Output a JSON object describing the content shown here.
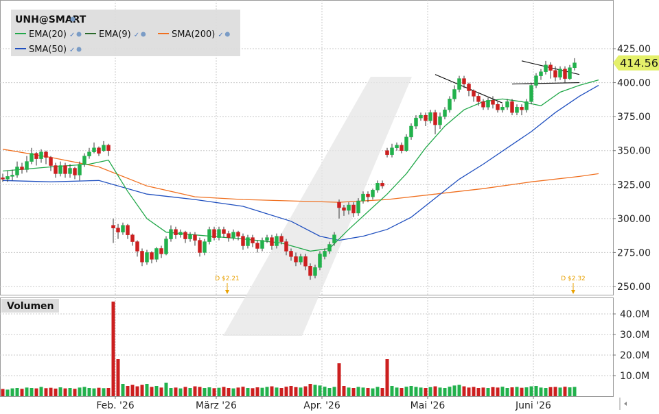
{
  "chart_data": {
    "type": "candlestick",
    "symbol": "UNH@SMART",
    "last_price": "414.56",
    "legend": [
      {
        "name": "EMA(20)",
        "color": "#22a84a"
      },
      {
        "name": "EMA(9)",
        "color": "#2a6a2a"
      },
      {
        "name": "SMA(200)",
        "color": "#f07020"
      },
      {
        "name": "SMA(50)",
        "color": "#1f4fbf"
      }
    ],
    "volume_label": "Volumen",
    "x_ticks": [
      {
        "label": "Feb. '26",
        "index": 24
      },
      {
        "label": "März '26",
        "index": 45
      },
      {
        "label": "Apr. '26",
        "index": 67
      },
      {
        "label": "Mai '26",
        "index": 89
      },
      {
        "label": "Juni '26",
        "index": 111
      }
    ],
    "price_axis": {
      "ylim": [
        242,
        428
      ],
      "ticks": [
        "425.00",
        "400.00",
        "375.00",
        "350.00",
        "325.00",
        "300.00",
        "275.00",
        "250.00"
      ]
    },
    "volume_axis": {
      "ylim": [
        0,
        48
      ],
      "ticks": [
        "40.0M",
        "30.0M",
        "20.0M",
        "10.0M"
      ],
      "unit": "M"
    },
    "dividends": [
      {
        "label": "D $2.21",
        "index": 47
      },
      {
        "label": "D $2.32",
        "index": 119
      }
    ],
    "candles": [
      [
        330,
        329,
        333,
        327
      ],
      [
        329,
        331,
        335,
        327
      ],
      [
        331,
        332,
        336,
        328
      ],
      [
        332,
        338,
        342,
        330
      ],
      [
        338,
        336,
        341,
        333
      ],
      [
        336,
        342,
        346,
        334
      ],
      [
        342,
        348,
        352,
        340
      ],
      [
        348,
        344,
        349,
        339
      ],
      [
        344,
        349,
        351,
        341
      ],
      [
        349,
        345,
        350,
        340
      ],
      [
        345,
        339,
        346,
        335
      ],
      [
        339,
        333,
        341,
        330
      ],
      [
        333,
        339,
        342,
        331
      ],
      [
        339,
        333,
        341,
        330
      ],
      [
        333,
        337,
        340,
        330
      ],
      [
        337,
        332,
        338,
        329
      ],
      [
        332,
        340,
        342,
        328
      ],
      [
        340,
        346,
        348,
        338
      ],
      [
        346,
        349,
        352,
        344
      ],
      [
        349,
        352,
        356,
        348
      ],
      [
        352,
        348,
        353,
        346
      ],
      [
        350,
        354,
        357,
        349
      ],
      [
        354,
        350,
        355,
        346
      ],
      [
        295,
        293,
        300,
        282
      ],
      [
        293,
        290,
        296,
        285
      ],
      [
        290,
        295,
        297,
        288
      ],
      [
        295,
        288,
        296,
        285
      ],
      [
        288,
        283,
        289,
        280
      ],
      [
        283,
        276,
        284,
        272
      ],
      [
        276,
        268,
        278,
        265
      ],
      [
        268,
        275,
        277,
        266
      ],
      [
        275,
        270,
        276,
        267
      ],
      [
        270,
        278,
        279,
        268
      ],
      [
        278,
        274,
        280,
        271
      ],
      [
        274,
        285,
        287,
        273
      ],
      [
        285,
        292,
        295,
        283
      ],
      [
        292,
        288,
        294,
        285
      ],
      [
        288,
        290,
        292,
        286
      ],
      [
        290,
        285,
        291,
        282
      ],
      [
        285,
        288,
        290,
        283
      ],
      [
        288,
        284,
        290,
        280
      ],
      [
        284,
        275,
        286,
        272
      ],
      [
        275,
        283,
        285,
        273
      ],
      [
        283,
        292,
        294,
        281
      ],
      [
        292,
        286,
        294,
        284
      ],
      [
        286,
        292,
        294,
        284
      ],
      [
        292,
        289,
        294,
        286
      ],
      [
        289,
        286,
        291,
        283
      ],
      [
        286,
        290,
        292,
        284
      ],
      [
        290,
        287,
        291,
        284
      ],
      [
        287,
        280,
        289,
        277
      ],
      [
        280,
        286,
        288,
        278
      ],
      [
        286,
        282,
        288,
        279
      ],
      [
        282,
        278,
        284,
        275
      ],
      [
        278,
        284,
        286,
        276
      ],
      [
        284,
        286,
        288,
        282
      ],
      [
        286,
        280,
        288,
        277
      ],
      [
        280,
        287,
        289,
        278
      ],
      [
        287,
        283,
        289,
        281
      ],
      [
        283,
        276,
        285,
        273
      ],
      [
        276,
        272,
        278,
        269
      ],
      [
        272,
        268,
        275,
        265
      ],
      [
        268,
        272,
        274,
        266
      ],
      [
        272,
        265,
        274,
        262
      ],
      [
        265,
        258,
        267,
        255
      ],
      [
        258,
        264,
        266,
        256
      ],
      [
        264,
        274,
        276,
        262
      ],
      [
        272,
        276,
        278,
        270
      ],
      [
        276,
        281,
        283,
        274
      ],
      [
        282,
        288,
        290,
        280
      ],
      [
        312,
        308,
        314,
        300
      ],
      [
        308,
        306,
        310,
        302
      ],
      [
        306,
        310,
        312,
        303
      ],
      [
        310,
        304,
        312,
        301
      ],
      [
        304,
        313,
        315,
        302
      ],
      [
        313,
        318,
        320,
        311
      ],
      [
        318,
        316,
        320,
        312
      ],
      [
        316,
        321,
        322,
        314
      ],
      [
        321,
        326,
        328,
        319
      ],
      [
        326,
        324,
        328,
        322
      ],
      [
        350,
        347,
        352,
        345
      ],
      [
        347,
        352,
        355,
        345
      ],
      [
        352,
        354,
        356,
        350
      ],
      [
        354,
        350,
        356,
        348
      ],
      [
        350,
        360,
        362,
        349
      ],
      [
        360,
        368,
        370,
        358
      ],
      [
        368,
        374,
        376,
        366
      ],
      [
        374,
        376,
        378,
        372
      ],
      [
        376,
        372,
        378,
        368
      ],
      [
        372,
        378,
        380,
        370
      ],
      [
        378,
        369,
        380,
        362
      ],
      [
        369,
        375,
        378,
        366
      ],
      [
        375,
        380,
        382,
        373
      ],
      [
        380,
        388,
        390,
        378
      ],
      [
        388,
        395,
        398,
        386
      ],
      [
        395,
        403,
        405,
        393
      ],
      [
        403,
        399,
        405,
        396
      ],
      [
        399,
        394,
        400,
        390
      ],
      [
        394,
        390,
        395,
        386
      ],
      [
        390,
        386,
        392,
        383
      ],
      [
        386,
        382,
        388,
        380
      ],
      [
        382,
        387,
        389,
        380
      ],
      [
        387,
        384,
        390,
        381
      ],
      [
        384,
        380,
        386,
        378
      ],
      [
        380,
        382,
        384,
        378
      ],
      [
        382,
        386,
        388,
        380
      ],
      [
        386,
        378,
        388,
        376
      ],
      [
        378,
        382,
        384,
        376
      ],
      [
        382,
        380,
        384,
        376
      ],
      [
        380,
        386,
        388,
        378
      ],
      [
        386,
        398,
        400,
        384
      ],
      [
        398,
        405,
        407,
        396
      ],
      [
        405,
        408,
        410,
        402
      ],
      [
        408,
        413,
        416,
        406
      ],
      [
        413,
        409,
        415,
        403
      ],
      [
        409,
        404,
        412,
        401
      ],
      [
        404,
        410,
        412,
        402
      ],
      [
        410,
        403,
        412,
        400
      ],
      [
        403,
        411,
        413,
        402
      ],
      [
        411,
        414.56,
        418,
        409
      ]
    ],
    "volumes": [
      3.5,
      3.2,
      3.8,
      4.0,
      3.6,
      4.2,
      4.0,
      3.8,
      4.5,
      3.9,
      4.1,
      3.7,
      4.3,
      3.8,
      4.0,
      3.6,
      4.2,
      4.5,
      4.0,
      3.8,
      4.1,
      3.9,
      4.0,
      46.0,
      18.0,
      6.0,
      5.0,
      5.5,
      4.8,
      5.5,
      6.0,
      4.5,
      5.0,
      4.2,
      6.5,
      4.0,
      4.2,
      3.8,
      4.5,
      4.0,
      4.8,
      4.5,
      4.0,
      4.3,
      3.9,
      4.1,
      4.5,
      4.0,
      3.8,
      4.2,
      4.6,
      4.0,
      3.9,
      4.3,
      4.1,
      4.5,
      4.8,
      4.2,
      4.0,
      4.6,
      5.0,
      4.4,
      4.2,
      4.8,
      6.0,
      5.5,
      5.2,
      4.6,
      4.0,
      4.5,
      16.0,
      5.0,
      4.2,
      4.0,
      4.5,
      4.2,
      4.0,
      3.8,
      4.5,
      4.0,
      18.0,
      5.0,
      4.2,
      4.0,
      4.6,
      5.0,
      4.5,
      4.2,
      4.0,
      4.4,
      4.8,
      4.2,
      4.0,
      4.6,
      5.2,
      5.5,
      4.8,
      4.2,
      4.5,
      4.0,
      4.2,
      4.0,
      4.4,
      4.2,
      4.6,
      4.0,
      4.3,
      4.5,
      4.1,
      4.3,
      4.8,
      5.0,
      4.2,
      4.0,
      4.4,
      4.5,
      4.2,
      4.6,
      4.3,
      4.5
    ],
    "sma200": [
      [
        0,
        351
      ],
      [
        10,
        345
      ],
      [
        20,
        338
      ],
      [
        30,
        324
      ],
      [
        40,
        316
      ],
      [
        50,
        314
      ],
      [
        60,
        313
      ],
      [
        70,
        312
      ],
      [
        80,
        314
      ],
      [
        90,
        318
      ],
      [
        100,
        322
      ],
      [
        110,
        327
      ],
      [
        120,
        331
      ],
      [
        124,
        333
      ]
    ],
    "sma50": [
      [
        0,
        328
      ],
      [
        10,
        327
      ],
      [
        20,
        328
      ],
      [
        30,
        318
      ],
      [
        40,
        314
      ],
      [
        50,
        309
      ],
      [
        60,
        298
      ],
      [
        66,
        287
      ],
      [
        70,
        284
      ],
      [
        75,
        287
      ],
      [
        80,
        292
      ],
      [
        85,
        301
      ],
      [
        90,
        315
      ],
      [
        95,
        329
      ],
      [
        100,
        340
      ],
      [
        105,
        352
      ],
      [
        110,
        364
      ],
      [
        115,
        378
      ],
      [
        120,
        390
      ],
      [
        124,
        398
      ]
    ],
    "ema20": [
      [
        0,
        335
      ],
      [
        10,
        338
      ],
      [
        18,
        340
      ],
      [
        22,
        343
      ],
      [
        26,
        320
      ],
      [
        30,
        300
      ],
      [
        34,
        290
      ],
      [
        40,
        288
      ],
      [
        50,
        285
      ],
      [
        58,
        282
      ],
      [
        64,
        276
      ],
      [
        68,
        278
      ],
      [
        72,
        292
      ],
      [
        76,
        305
      ],
      [
        80,
        318
      ],
      [
        84,
        333
      ],
      [
        88,
        352
      ],
      [
        92,
        368
      ],
      [
        96,
        380
      ],
      [
        100,
        386
      ],
      [
        104,
        388
      ],
      [
        108,
        386
      ],
      [
        112,
        383
      ],
      [
        116,
        393
      ],
      [
        120,
        398
      ],
      [
        124,
        402
      ]
    ]
  }
}
